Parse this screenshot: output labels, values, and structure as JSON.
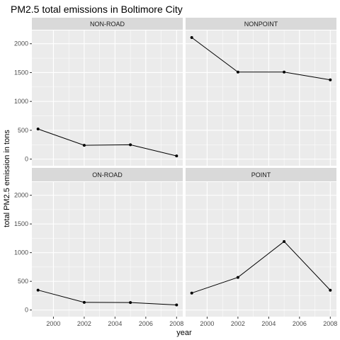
{
  "chart_data": {
    "type": "line",
    "title": "PM2.5 total emissions in Boltimore City",
    "xlabel": "year",
    "ylabel": "total PM2.5 emission in tons",
    "x": [
      1999,
      2002,
      2005,
      2008
    ],
    "xlim": [
      1998.6,
      2008.4
    ],
    "ylim": [
      -115,
      2230
    ],
    "x_ticks": [
      2000,
      2002,
      2004,
      2006,
      2008
    ],
    "y_ticks": [
      0,
      500,
      1000,
      1500,
      2000
    ],
    "grid": true,
    "facets": [
      {
        "label": "NON-ROAD",
        "values": [
          522,
          240,
          248,
          55
        ]
      },
      {
        "label": "NONPOINT",
        "values": [
          2107,
          1509,
          1509,
          1373
        ]
      },
      {
        "label": "ON-ROAD",
        "values": [
          347,
          134,
          130,
          88
        ]
      },
      {
        "label": "POINT",
        "values": [
          296,
          569,
          1194,
          345
        ]
      }
    ],
    "colors": {
      "panel_background": "#ebebeb",
      "strip_background": "#d9d9d9",
      "grid_major": "#ffffff",
      "line": "#000000"
    }
  }
}
